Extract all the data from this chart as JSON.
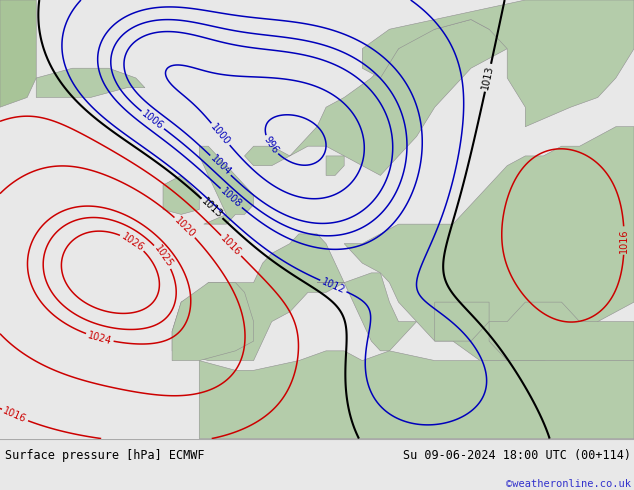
{
  "title_left": "Surface pressure [hPa] ECMWF",
  "title_right": "Su 09-06-2024 18:00 UTC (00+114)",
  "watermark": "©weatheronline.co.uk",
  "footer_bg": "#e8e8e8",
  "watermark_color": "#3333cc",
  "map_bg_ocean": "#d8e8e0",
  "map_bg_land": "#b8d4a0",
  "map_bg_sea_light": "#c8dcd4"
}
